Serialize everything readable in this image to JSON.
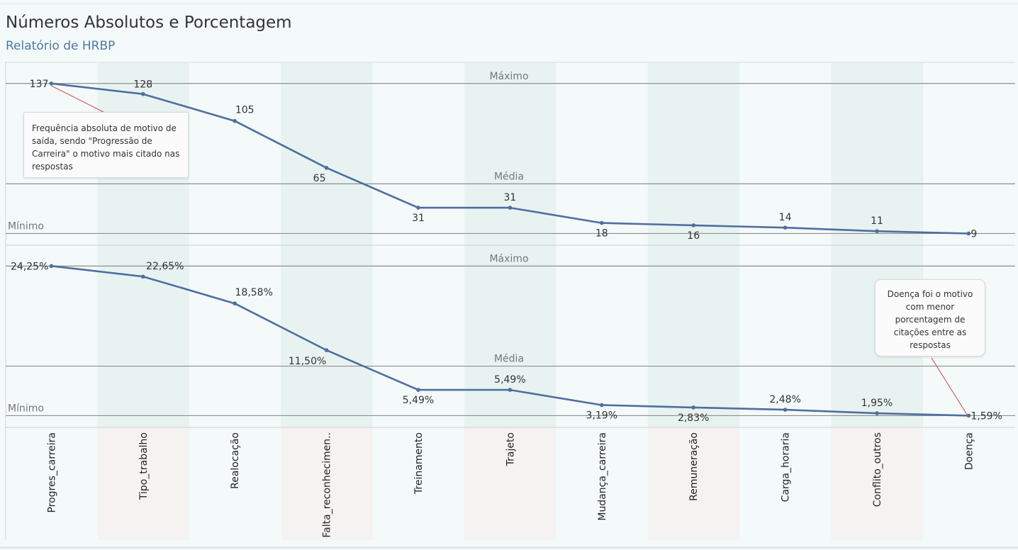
{
  "header": {
    "title": "Números Absolutos e Porcentagem",
    "subtitle": "Relatório de HRBP"
  },
  "colors": {
    "line": "#4e6f9f",
    "band_top": "#e8f3f1",
    "band_bottom": "#f5f2f2",
    "background": "#f4f9f9",
    "subtitle": "#4e79a7",
    "reference_line": "#8f8f8f",
    "callout_line": "#d64545"
  },
  "annotations": {
    "absolute": "Frequência absoluta de motivo de saída, sendo \"Progressão de Carreira\" o motivo mais citado nas respostas",
    "percent": "Doença foi o motivo com menor porcentagem de citações entre as respostas"
  },
  "chart_data": [
    {
      "type": "line",
      "categories": [
        "Progres_carreira",
        "Tipo_trabalho",
        "Realocação",
        "Falta_reconhecimen..",
        "Treinamento",
        "Trajeto",
        "Mudança_carreira",
        "Remuneração",
        "Carga_horaria",
        "Conflito_outros",
        "Doença"
      ],
      "values": [
        137,
        128,
        105,
        65,
        31,
        31,
        18,
        16,
        14,
        11,
        9
      ],
      "labels": [
        "137",
        "128",
        "105",
        "65",
        "31",
        "31",
        "18",
        "16",
        "14",
        "11",
        "9"
      ],
      "reference_lines": [
        {
          "label": "Máximo",
          "value": 137
        },
        {
          "label": "Média",
          "value": 51.36
        },
        {
          "label": "Mínimo",
          "value": 9
        }
      ],
      "ylim": [
        -1,
        155
      ],
      "grid": false
    },
    {
      "type": "line",
      "categories": [
        "Progres_carreira",
        "Tipo_trabalho",
        "Realocação",
        "Falta_reconhecimen..",
        "Treinamento",
        "Trajeto",
        "Mudança_carreira",
        "Remuneração",
        "Carga_horaria",
        "Conflito_outros",
        "Doença"
      ],
      "values": [
        24.25,
        22.65,
        18.58,
        11.5,
        5.49,
        5.49,
        3.19,
        2.83,
        2.48,
        1.95,
        1.59
      ],
      "labels": [
        "24,25%",
        "22,65%",
        "18,58%",
        "11,50%",
        "5,49%",
        "5,49%",
        "3,19%",
        "2,83%",
        "2,48%",
        "1,95%",
        "1,59%"
      ],
      "reference_lines": [
        {
          "label": "Máximo",
          "value": 24.25
        },
        {
          "label": "Média",
          "value": 9.09
        },
        {
          "label": "Mínimo",
          "value": 1.59
        }
      ],
      "ylim": [
        -0.19,
        27.4
      ],
      "grid": false
    }
  ]
}
